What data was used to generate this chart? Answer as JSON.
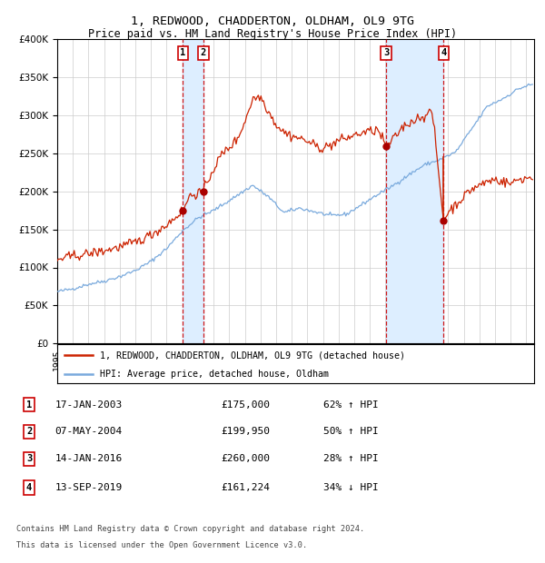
{
  "title": "1, REDWOOD, CHADDERTON, OLDHAM, OL9 9TG",
  "subtitle": "Price paid vs. HM Land Registry's House Price Index (HPI)",
  "legend_line1": "1, REDWOOD, CHADDERTON, OLDHAM, OL9 9TG (detached house)",
  "legend_line2": "HPI: Average price, detached house, Oldham",
  "footer_line1": "Contains HM Land Registry data © Crown copyright and database right 2024.",
  "footer_line2": "This data is licensed under the Open Government Licence v3.0.",
  "hpi_color": "#7aaadd",
  "price_color": "#cc2200",
  "dot_color": "#aa0000",
  "transaction_color": "#cc0000",
  "marker_box_color": "#cc0000",
  "background_color": "#ffffff",
  "grid_color": "#cccccc",
  "shade_color": "#ddeeff",
  "transactions": [
    {
      "num": 1,
      "date": "17-JAN-2003",
      "price": 175000,
      "pct": "62%",
      "dir": "↑",
      "year": 2003.04
    },
    {
      "num": 2,
      "date": "07-MAY-2004",
      "price": 199950,
      "pct": "50%",
      "dir": "↑",
      "year": 2004.35
    },
    {
      "num": 3,
      "date": "14-JAN-2016",
      "price": 260000,
      "pct": "28%",
      "dir": "↑",
      "year": 2016.04
    },
    {
      "num": 4,
      "date": "13-SEP-2019",
      "price": 161224,
      "pct": "34%",
      "dir": "↓",
      "year": 2019.71
    }
  ],
  "ylim": [
    0,
    400000
  ],
  "yticks": [
    0,
    50000,
    100000,
    150000,
    200000,
    250000,
    300000,
    350000,
    400000
  ],
  "xlim_start": 1995.0,
  "xlim_end": 2025.5,
  "table_rows": [
    [
      1,
      "17-JAN-2003",
      "£175,000",
      "62% ↑ HPI"
    ],
    [
      2,
      "07-MAY-2004",
      "£199,950",
      "50% ↑ HPI"
    ],
    [
      3,
      "14-JAN-2016",
      "£260,000",
      "28% ↑ HPI"
    ],
    [
      4,
      "13-SEP-2019",
      "£161,224",
      "34% ↓ HPI"
    ]
  ]
}
